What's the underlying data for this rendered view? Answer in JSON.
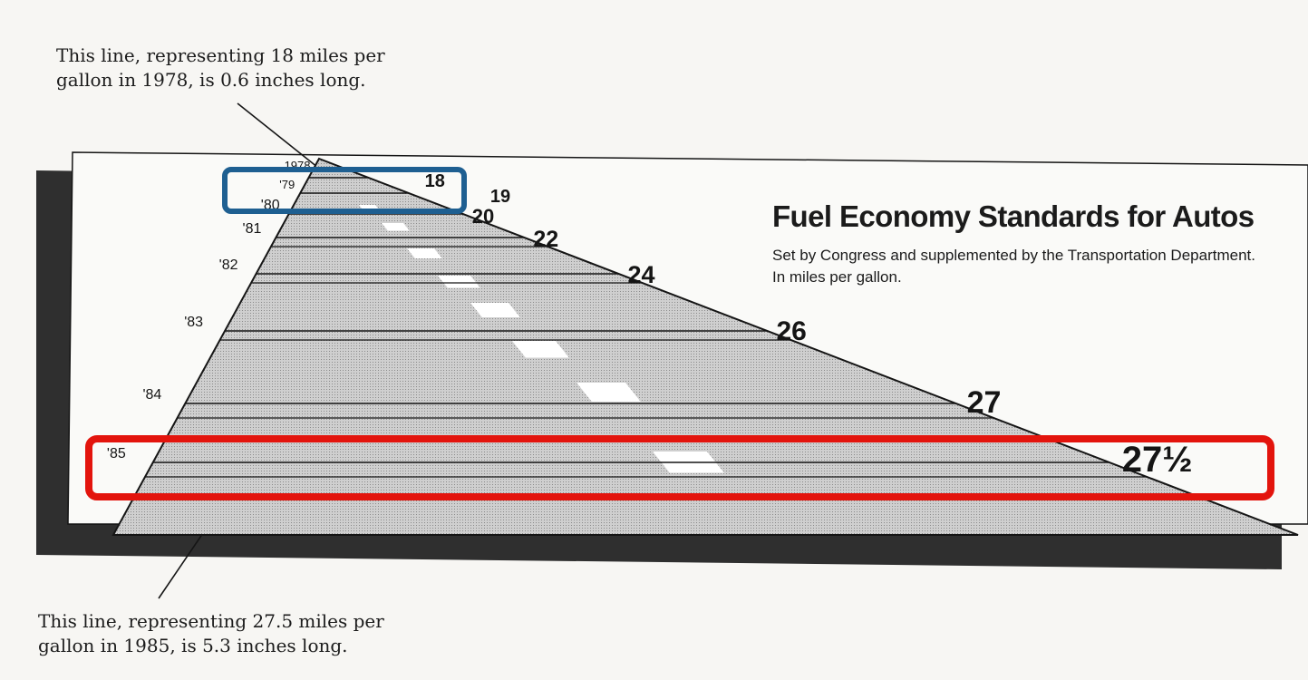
{
  "annotations": {
    "top": "This line, representing 18 miles per gallon in 1978, is 0.6 inches long.",
    "bottom": "This line, representing 27.5 miles per gallon in 1985, is 5.3 inches long."
  },
  "chart_data": {
    "type": "bar",
    "title": "Fuel Economy Standards for Autos",
    "subtitle": "Set by Congress and supplemented by the Transportation Department. In miles per gallon.",
    "categories": [
      "1978",
      "'79",
      "'80",
      "'81",
      "'82",
      "'83",
      "'84",
      "'85"
    ],
    "values": [
      18,
      19,
      20,
      22,
      24,
      26,
      27,
      27.5
    ],
    "value_labels": [
      "18",
      "19",
      "20",
      "22",
      "24",
      "26",
      "27",
      "27½"
    ],
    "xlabel": "",
    "ylabel": "",
    "grid": false,
    "legend": "none"
  },
  "highlights": [
    {
      "target": "1979",
      "color": "#1e5f91"
    },
    {
      "target": "1985",
      "color": "#e3140d"
    }
  ],
  "colors": {
    "road_fill": "#bdbdbd",
    "shadow": "#2f2f2f",
    "ink": "#151515",
    "lane_marker": "#ffffff",
    "highlight_1979": "#1e5f91",
    "highlight_1985": "#e3140d"
  }
}
